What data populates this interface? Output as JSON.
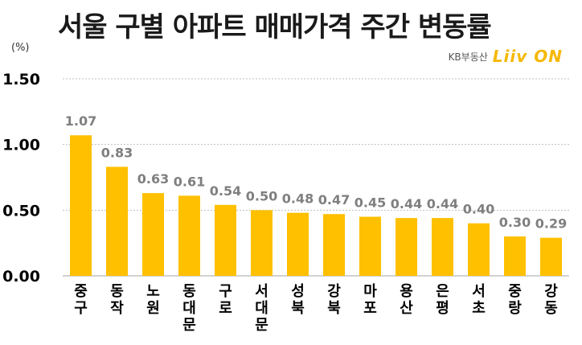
{
  "header": {
    "title": "서울 구별 아파트 매매가격 주간 변동률",
    "unit": "(%)",
    "brand_text": "KB부동산",
    "brand_logo": "Liiv ON"
  },
  "colors": {
    "bar": "#FFC000",
    "value_label": "#7f7f7f",
    "grid": "#bfbfbf",
    "axis_text": "#000000"
  },
  "chart_data": {
    "type": "bar",
    "title": "서울 구별 아파트 매매가격 주간 변동률",
    "ylabel": "(%)",
    "xlabel": "",
    "ylim": [
      0,
      1.5
    ],
    "yticks": [
      "0.00",
      "0.50",
      "1.00",
      "1.50"
    ],
    "grid": true,
    "categories": [
      "중구",
      "동작",
      "노원",
      "동대문",
      "구로",
      "서대문",
      "성북",
      "강북",
      "마포",
      "용산",
      "은평",
      "서초",
      "중랑",
      "강동"
    ],
    "values": [
      1.07,
      0.83,
      0.63,
      0.61,
      0.54,
      0.5,
      0.48,
      0.47,
      0.45,
      0.44,
      0.44,
      0.4,
      0.3,
      0.29
    ],
    "value_labels": [
      "1.07",
      "0.83",
      "0.63",
      "0.61",
      "0.54",
      "0.50",
      "0.48",
      "0.47",
      "0.45",
      "0.44",
      "0.44",
      "0.40",
      "0.30",
      "0.29"
    ]
  }
}
